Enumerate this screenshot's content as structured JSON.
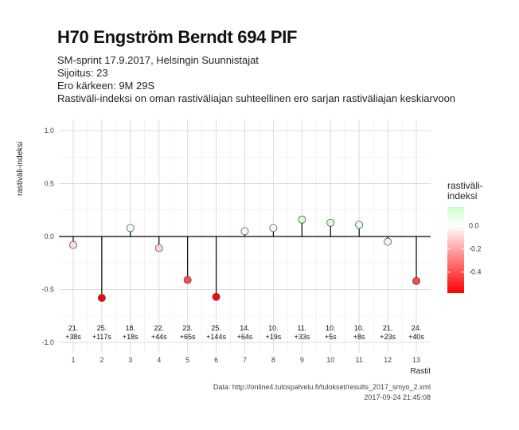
{
  "header": {
    "title": "H70 Engström Berndt 694 PIF",
    "line1": "SM-sprint 17.9.2017, Helsingin Suunnistajat",
    "line2": "Sijoitus: 23",
    "line3": "Ero kärkeen: 9M 29S",
    "line4": "Rastiväli-indeksi on oman rastiväliajan suhteellinen ero sarjan rastiväliajan keskiarvoon"
  },
  "caption": {
    "source": "Data: http://online4.tulospalvelu.fi/tulokset/results_2017_smyo_2.xml",
    "timestamp": "2017-09-24 21:45:08"
  },
  "legend": {
    "title_line1": "rastiväli-",
    "title_line2": "indeksi",
    "ticks": [
      "-0.4",
      "-0.2",
      "0.0"
    ],
    "colors": {
      "low": "#ff0000",
      "mid": "#ffffff",
      "high": "#ccffcc"
    }
  },
  "chart_data": {
    "type": "lollipop",
    "ylabel": "rastiväli-indeksi",
    "xlabel": "Rastit",
    "ylim": [
      -1.0,
      1.0
    ],
    "yticks": [
      "1.0",
      "0.5",
      "0.0",
      "-0.5",
      "-1.0"
    ],
    "x": [
      1,
      2,
      3,
      4,
      5,
      6,
      7,
      8,
      9,
      10,
      11,
      12,
      13
    ],
    "values": [
      -0.08,
      -0.58,
      0.08,
      -0.11,
      -0.41,
      -0.57,
      0.05,
      0.08,
      0.16,
      0.13,
      0.11,
      -0.05,
      -0.42
    ],
    "labels_top": [
      "21.",
      "25.",
      "18.",
      "22.",
      "23.",
      "25.",
      "14.",
      "10.",
      "11.",
      "10.",
      "10.",
      "21.",
      "24."
    ],
    "labels_bottom": [
      "+38s",
      "+117s",
      "+18s",
      "+44s",
      "+65s",
      "+144s",
      "+64s",
      "+19s",
      "+33s",
      "+5s",
      "+8s",
      "+23s",
      "+40s"
    ],
    "grid": true
  }
}
